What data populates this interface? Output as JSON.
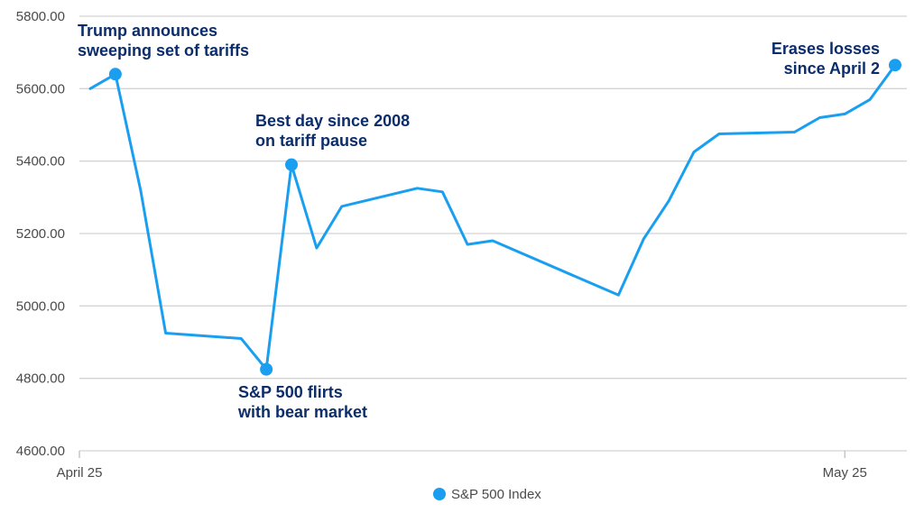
{
  "chart_data": {
    "type": "line",
    "ylim": [
      4600,
      5800
    ],
    "yticks": [
      "5800.00",
      "5600.00",
      "5400.00",
      "5200.00",
      "5000.00",
      "4800.00",
      "4600.00"
    ],
    "ytick_values": [
      5800,
      5600,
      5400,
      5200,
      5000,
      4800,
      4600
    ],
    "xticks": [
      {
        "label": "April 25",
        "index": 0
      },
      {
        "label": "May 25",
        "index": 30
      }
    ],
    "x_count": 32,
    "grid": true,
    "line_color": "#1a9ff0",
    "annotation_color": "#0b2d6b",
    "series": [
      {
        "name": "S&P 500 Index",
        "points": [
          {
            "i": 0,
            "y": 5600
          },
          {
            "i": 1,
            "y": 5640
          },
          {
            "i": 2,
            "y": 5320
          },
          {
            "i": 3,
            "y": 4925
          },
          {
            "i": 6,
            "y": 4910
          },
          {
            "i": 7,
            "y": 4825
          },
          {
            "i": 8,
            "y": 5390
          },
          {
            "i": 9,
            "y": 5160
          },
          {
            "i": 10,
            "y": 5275
          },
          {
            "i": 13,
            "y": 5325
          },
          {
            "i": 14,
            "y": 5315
          },
          {
            "i": 15,
            "y": 5170
          },
          {
            "i": 16,
            "y": 5180
          },
          {
            "i": 21,
            "y": 5030
          },
          {
            "i": 22,
            "y": 5185
          },
          {
            "i": 23,
            "y": 5290
          },
          {
            "i": 24,
            "y": 5425
          },
          {
            "i": 25,
            "y": 5475
          },
          {
            "i": 28,
            "y": 5480
          },
          {
            "i": 29,
            "y": 5520
          },
          {
            "i": 30,
            "y": 5530
          },
          {
            "i": 31,
            "y": 5570
          },
          {
            "i": 32,
            "y": 5665
          }
        ]
      }
    ],
    "annotations": [
      {
        "index": 1,
        "y": 5640,
        "lines": [
          "Trump announces",
          "sweeping set of tariffs"
        ],
        "position": "above"
      },
      {
        "index": 7,
        "y": 4825,
        "lines": [
          "S&P 500 flirts",
          "with bear market"
        ],
        "position": "below"
      },
      {
        "index": 8,
        "y": 5390,
        "lines": [
          "Best day since 2008",
          "on tariff pause"
        ],
        "position": "above"
      },
      {
        "index": 32,
        "y": 5665,
        "lines": [
          "Erases losses",
          "since April 2"
        ],
        "position": "above-left"
      }
    ],
    "legend": {
      "label": "S&P 500 Index",
      "placement": "bottom-center"
    }
  }
}
